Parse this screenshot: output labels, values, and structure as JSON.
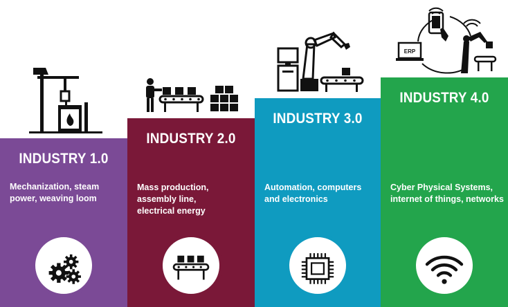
{
  "steps": [
    {
      "title": "INDUSTRY 1.0",
      "description": "Mechanization, steam power, weaving loom",
      "color": "#7b4a96",
      "icon": "gears-icon"
    },
    {
      "title": "INDUSTRY 2.0",
      "description": "Mass production, assembly line, electrical energy",
      "color": "#7a1838",
      "icon": "conveyor-icon"
    },
    {
      "title": "INDUSTRY 3.0",
      "description": "Automation, computers and electronics",
      "color": "#0f9bc0",
      "icon": "chip-icon"
    },
    {
      "title": "INDUSTRY 4.0",
      "description": "Cyber Physical Systems, internet of things, networks",
      "color": "#23a54c",
      "icon": "wifi-icon"
    }
  ],
  "illustrations": {
    "erp_label": "ERP"
  }
}
